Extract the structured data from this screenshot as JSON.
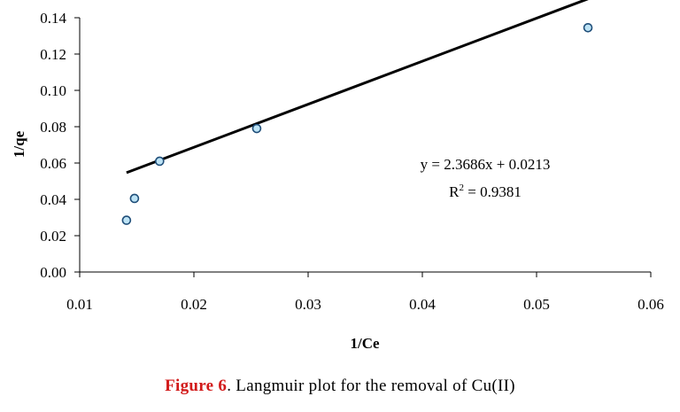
{
  "chart_data": {
    "type": "scatter",
    "xlabel": "1/Ce",
    "ylabel": "1/qe",
    "xlim": [
      0.01,
      0.06
    ],
    "ylim": [
      0.0,
      0.14
    ],
    "x_ticks": [
      "0.01",
      "0.02",
      "0.03",
      "0.04",
      "0.05",
      "0.06"
    ],
    "y_ticks": [
      "0.00",
      "0.02",
      "0.04",
      "0.06",
      "0.08",
      "0.10",
      "0.12",
      "0.14"
    ],
    "grid": false,
    "points": [
      {
        "x": 0.0141,
        "y": 0.0285
      },
      {
        "x": 0.0148,
        "y": 0.0405
      },
      {
        "x": 0.017,
        "y": 0.061
      },
      {
        "x": 0.0255,
        "y": 0.079
      },
      {
        "x": 0.0545,
        "y": 0.1345
      }
    ],
    "trendline": {
      "slope": 2.3686,
      "intercept": 0.0213,
      "x_from": 0.0141,
      "x_to": 0.0545
    },
    "equation": "y = 2.3686x + 0.0213",
    "r2_prefix": "R",
    "r2_sup": "2",
    "r2_suffix": " = 0.9381",
    "colors": {
      "point_fill": "#bde3f5",
      "point_stroke": "#1f4e79",
      "line": "#000000"
    }
  },
  "caption": {
    "label": "Figure 6",
    "text": ". Langmuir plot for the removal of Cu(II)"
  }
}
